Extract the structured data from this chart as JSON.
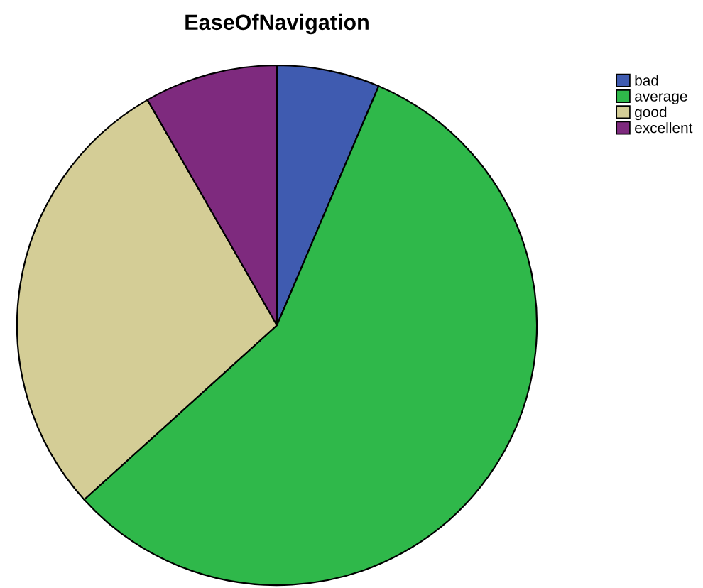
{
  "chart_data": {
    "type": "pie",
    "title": "EaseOfNavigation",
    "categories": [
      "bad",
      "average",
      "good",
      "excellent"
    ],
    "values": [
      6.4,
      56.9,
      28.4,
      8.3
    ],
    "colors": [
      "#3f5bb0",
      "#2fb84a",
      "#d4cd96",
      "#7e2a7e"
    ],
    "legend": "top right"
  }
}
